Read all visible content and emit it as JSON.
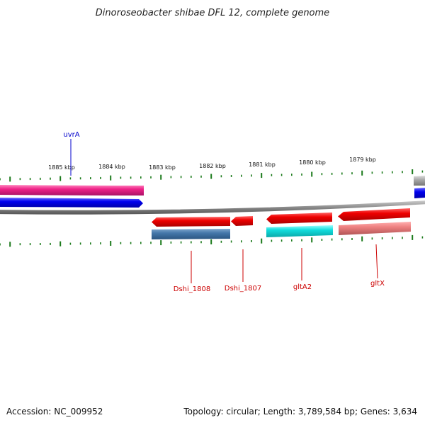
{
  "title": "Dinoroseobacter shibae DFL 12, complete genome",
  "footer": {
    "accession": "Accession: NC_009952",
    "topology": "Topology: circular; Length: 3,789,584 bp; Genes: 3,634"
  },
  "scale_labels": [
    "1885 kbp",
    "1884 kbp",
    "1883 kbp",
    "1882 kbp",
    "1881 kbp",
    "1880 kbp",
    "1879 kbp"
  ],
  "gene_labels": [
    {
      "name": "uvrA",
      "color": "#0000cc"
    },
    {
      "name": "Dshi_1808",
      "color": "#cc0000"
    },
    {
      "name": "Dshi_1807",
      "color": "#cc0000"
    },
    {
      "name": "gltA2",
      "color": "#cc0000"
    },
    {
      "name": "gltX",
      "color": "#cc0000"
    }
  ],
  "colors": {
    "tick": "#1a7a1a",
    "backbone": "#8a8a8a",
    "gene_forward_red": "#ee0000",
    "cds_magenta": "#ee2288",
    "cds_blue": "#0000ee",
    "cds_steelblue": "#4477aa",
    "cds_cyan": "#11dddd",
    "cds_salmon": "#ee8080",
    "cds_gray": "#aaaaaa"
  }
}
